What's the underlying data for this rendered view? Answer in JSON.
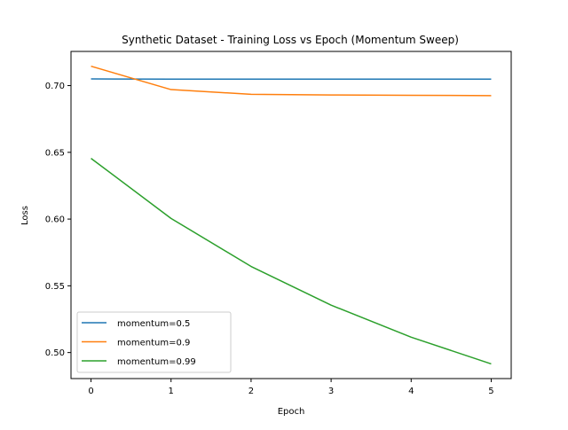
{
  "chart_data": {
    "type": "line",
    "title": "Synthetic Dataset - Training Loss vs Epoch (Momentum Sweep)",
    "xlabel": "Epoch",
    "ylabel": "Loss",
    "x": [
      0,
      1,
      2,
      3,
      4,
      5
    ],
    "xticks": [
      0,
      1,
      2,
      3,
      4,
      5
    ],
    "yticks": [
      0.5,
      0.55,
      0.6,
      0.65,
      0.7
    ],
    "ytick_labels": [
      "0.50",
      "0.55",
      "0.60",
      "0.65",
      "0.70"
    ],
    "xlim": [
      -0.25,
      5.25
    ],
    "ylim": [
      0.4805,
      0.7256
    ],
    "grid": false,
    "legend_position": "lower-left",
    "series": [
      {
        "name": "momentum=0.5",
        "color": "#1f77b4",
        "values": [
          0.705,
          0.7048,
          0.7048,
          0.7048,
          0.7048,
          0.7048
        ]
      },
      {
        "name": "momentum=0.9",
        "color": "#ff7f0e",
        "values": [
          0.7145,
          0.697,
          0.6935,
          0.693,
          0.6927,
          0.6925
        ]
      },
      {
        "name": "momentum=0.99",
        "color": "#2ca02c",
        "values": [
          0.6455,
          0.6005,
          0.5645,
          0.5355,
          0.5115,
          0.4915
        ]
      }
    ]
  }
}
